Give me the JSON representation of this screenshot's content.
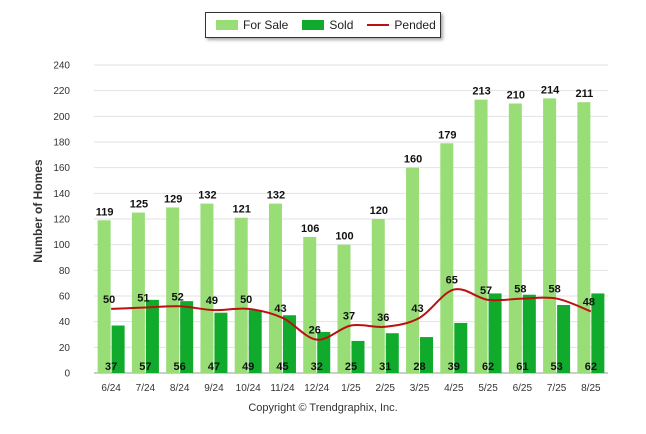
{
  "legend": {
    "for_sale": "For Sale",
    "sold": "Sold",
    "pended": "Pended"
  },
  "colors": {
    "for_sale": "#99dd77",
    "sold": "#10aa2c",
    "pended": "#bb1111"
  },
  "footer": {
    "copyright": "Copyright © Trendgraphix, Inc."
  },
  "chart_data": {
    "type": "bar",
    "ylabel": "Number of Homes",
    "xlabel": "",
    "ylim": [
      0,
      240
    ],
    "yticks": [
      0,
      20,
      40,
      60,
      80,
      100,
      120,
      140,
      160,
      180,
      200,
      220,
      240
    ],
    "grid": true,
    "legend_position": "top-center",
    "categories": [
      "6/24",
      "7/24",
      "8/24",
      "9/24",
      "10/24",
      "11/24",
      "12/24",
      "1/25",
      "2/25",
      "3/25",
      "4/25",
      "5/25",
      "6/25",
      "7/25",
      "8/25"
    ],
    "series": [
      {
        "name": "For Sale",
        "type": "bar",
        "values": [
          119,
          125,
          129,
          132,
          121,
          132,
          106,
          100,
          120,
          160,
          179,
          213,
          210,
          214,
          211
        ]
      },
      {
        "name": "Sold",
        "type": "bar",
        "values": [
          37,
          57,
          56,
          47,
          49,
          45,
          32,
          25,
          31,
          28,
          39,
          62,
          61,
          53,
          62
        ]
      },
      {
        "name": "Pended",
        "type": "line",
        "values": [
          50,
          51,
          52,
          49,
          50,
          43,
          26,
          37,
          36,
          43,
          65,
          57,
          58,
          58,
          48
        ]
      }
    ]
  }
}
